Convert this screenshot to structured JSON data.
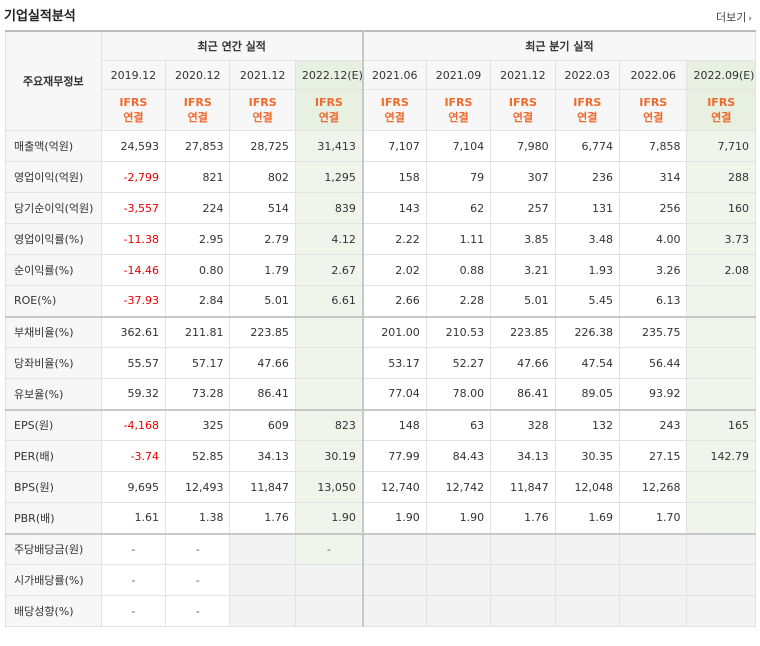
{
  "header": {
    "title": "기업실적분석",
    "more_label": "더보기",
    "more_arrow": "›"
  },
  "table": {
    "corner_label": "주요재무정보",
    "annual_title": "최근 연간 실적",
    "quarter_title": "최근 분기 실적",
    "dates": [
      "2019.12",
      "2020.12",
      "2021.12",
      "2022.12(E)",
      "2021.06",
      "2021.09",
      "2021.12",
      "2022.03",
      "2022.06",
      "2022.09(E)"
    ],
    "ifrs_top": "IFRS",
    "ifrs_bottom": "연결",
    "rows": [
      {
        "label": "매출액(억원)",
        "values": [
          "24,593",
          "27,853",
          "28,725",
          "31,413",
          "7,107",
          "7,104",
          "7,980",
          "6,774",
          "7,858",
          "7,710"
        ]
      },
      {
        "label": "영업이익(억원)",
        "values": [
          "-2,799",
          "821",
          "802",
          "1,295",
          "158",
          "79",
          "307",
          "236",
          "314",
          "288"
        ]
      },
      {
        "label": "당기순이익(억원)",
        "values": [
          "-3,557",
          "224",
          "514",
          "839",
          "143",
          "62",
          "257",
          "131",
          "256",
          "160"
        ]
      },
      {
        "label": "영업이익률(%)",
        "values": [
          "-11.38",
          "2.95",
          "2.79",
          "4.12",
          "2.22",
          "1.11",
          "3.85",
          "3.48",
          "4.00",
          "3.73"
        ]
      },
      {
        "label": "순이익률(%)",
        "values": [
          "-14.46",
          "0.80",
          "1.79",
          "2.67",
          "2.02",
          "0.88",
          "3.21",
          "1.93",
          "3.26",
          "2.08"
        ]
      },
      {
        "label": "ROE(%)",
        "values": [
          "-37.93",
          "2.84",
          "5.01",
          "6.61",
          "2.66",
          "2.28",
          "5.01",
          "5.45",
          "6.13",
          ""
        ]
      },
      {
        "label": "부채비율(%)",
        "values": [
          "362.61",
          "211.81",
          "223.85",
          "",
          "201.00",
          "210.53",
          "223.85",
          "226.38",
          "235.75",
          ""
        ]
      },
      {
        "label": "당좌비율(%)",
        "values": [
          "55.57",
          "57.17",
          "47.66",
          "",
          "53.17",
          "52.27",
          "47.66",
          "47.54",
          "56.44",
          ""
        ]
      },
      {
        "label": "유보율(%)",
        "values": [
          "59.32",
          "73.28",
          "86.41",
          "",
          "77.04",
          "78.00",
          "86.41",
          "89.05",
          "93.92",
          ""
        ]
      },
      {
        "label": "EPS(원)",
        "values": [
          "-4,168",
          "325",
          "609",
          "823",
          "148",
          "63",
          "328",
          "132",
          "243",
          "165"
        ]
      },
      {
        "label": "PER(배)",
        "values": [
          "-3.74",
          "52.85",
          "34.13",
          "30.19",
          "77.99",
          "84.43",
          "34.13",
          "30.35",
          "27.15",
          "142.79"
        ]
      },
      {
        "label": "BPS(원)",
        "values": [
          "9,695",
          "12,493",
          "11,847",
          "13,050",
          "12,740",
          "12,742",
          "11,847",
          "12,048",
          "12,268",
          ""
        ]
      },
      {
        "label": "PBR(배)",
        "values": [
          "1.61",
          "1.38",
          "1.76",
          "1.90",
          "1.90",
          "1.90",
          "1.76",
          "1.69",
          "1.70",
          ""
        ]
      },
      {
        "label": "주당배당금(원)",
        "values": [
          "-",
          "-",
          "",
          "-",
          "",
          "",
          "",
          "",
          "",
          ""
        ]
      },
      {
        "label": "시가배당률(%)",
        "values": [
          "-",
          "-",
          "",
          "",
          "",
          "",
          "",
          "",
          "",
          ""
        ]
      },
      {
        "label": "배당성향(%)",
        "values": [
          "-",
          "-",
          "",
          "",
          "",
          "",
          "",
          "",
          "",
          ""
        ]
      }
    ]
  }
}
